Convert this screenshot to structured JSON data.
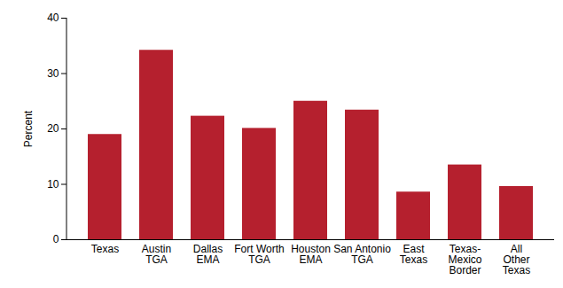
{
  "chart_data": {
    "type": "bar",
    "ylabel": "Percent",
    "categories": [
      "Texas",
      "Austin\nTGA",
      "Dallas\nEMA",
      "Fort Worth\nTGA",
      "Houston\nEMA",
      "San Antonio\nTGA",
      "East\nTexas",
      "Texas-\nMexico\nBorder",
      "All\nOther\nTexas"
    ],
    "values": [
      19,
      34.2,
      22.3,
      20.1,
      25,
      23.4,
      8.6,
      13.5,
      9.6
    ],
    "color": "#b5202e",
    "ylim": [
      0,
      40
    ],
    "yticks": [
      0,
      10,
      20,
      30,
      40
    ],
    "grid": false
  }
}
